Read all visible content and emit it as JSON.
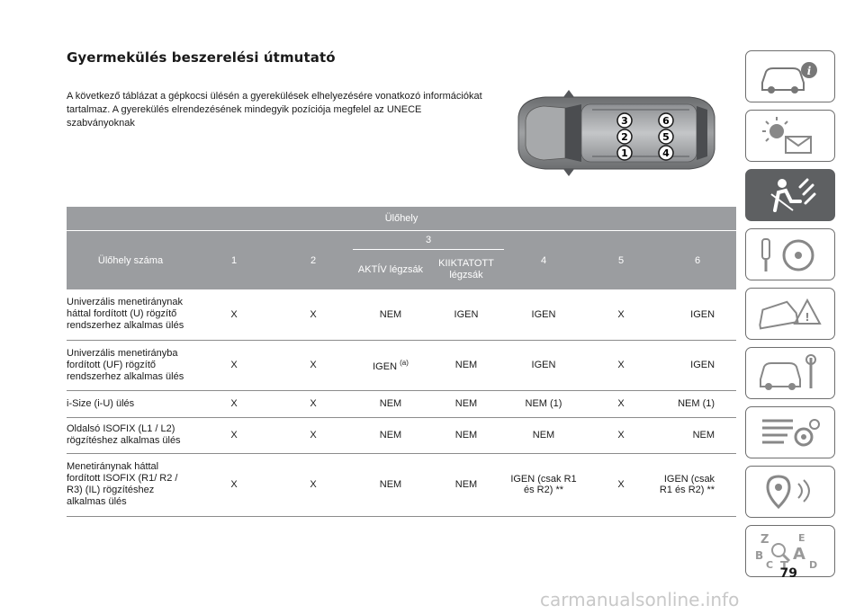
{
  "title": "Gyermekülés beszerelési útmutató",
  "intro": "A következő táblázat a gépkocsi ülésén a gyerekülések elhelyezésére vonatkozó információkat tartalmaz. A gyerekülés elrendezésének mindegyik pozíciója megfelel az UNECE szabványoknak",
  "seat_numbers": {
    "s1": "1",
    "s2": "2",
    "s3": "3",
    "s4": "4",
    "s5": "5",
    "s6": "6"
  },
  "table": {
    "group_header": "Ülőhely",
    "row_header": "Ülőhely száma",
    "cols": {
      "c1": "1",
      "c2": "2",
      "c3": "3",
      "c4": "4",
      "c5": "5",
      "c6": "6"
    },
    "sub_aktiv": "AKTÍV légzsák",
    "sub_kiiktatott": "KIIKTATOTT légzsák",
    "rows": [
      {
        "label": "Univerzális menetiránynak háttal fordított (U) rögzítő rendszerhez alkalmas ülés",
        "v": [
          "X",
          "X",
          "NEM",
          "IGEN",
          "IGEN",
          "X",
          "IGEN"
        ]
      },
      {
        "label": "Univerzális menetirányba fordított (UF) rögzítő rendszerhez alkalmas ülés",
        "v": [
          "X",
          "X",
          "IGEN",
          "NEM",
          "IGEN",
          "X",
          "IGEN"
        ],
        "note": "(a)"
      },
      {
        "label": "i-Size (i-U) ülés",
        "v": [
          "X",
          "X",
          "NEM",
          "NEM",
          "NEM (1)",
          "X",
          "NEM (1)"
        ]
      },
      {
        "label": "Oldalsó ISOFIX (L1 / L2) rögzítéshez alkalmas ülés",
        "v": [
          "X",
          "X",
          "NEM",
          "NEM",
          "NEM",
          "X",
          "NEM"
        ]
      },
      {
        "label": "Menetiránynak háttal fordított ISOFIX (R1/ R2 / R3) (IL) rögzítéshez alkalmas ülés",
        "v": [
          "X",
          "X",
          "NEM",
          "NEM",
          "IGEN (csak R1 és R2) **",
          "X",
          "IGEN (csak R1 és R2) **"
        ]
      }
    ]
  },
  "side_tabs": {
    "tab1_icon": "car-info-icon",
    "tab2_icon": "warning-light-mail-icon",
    "tab3_icon": "seat-airbag-icon",
    "tab4_icon": "key-steering-icon",
    "tab5_icon": "emergency-car-icon",
    "tab6_icon": "car-maintenance-icon",
    "tab7_icon": "specifications-icon",
    "tab8_icon": "multimedia-icon",
    "tab9_icon": "alphabetical-index-icon",
    "index_letters": {
      "z": "Z",
      "e": "E",
      "b": "B",
      "a": "A",
      "c": "C",
      "t": "T",
      "d": "D"
    },
    "active_color": "#5e6062"
  },
  "page_number": "79",
  "watermark": "carmanualsonline.info"
}
